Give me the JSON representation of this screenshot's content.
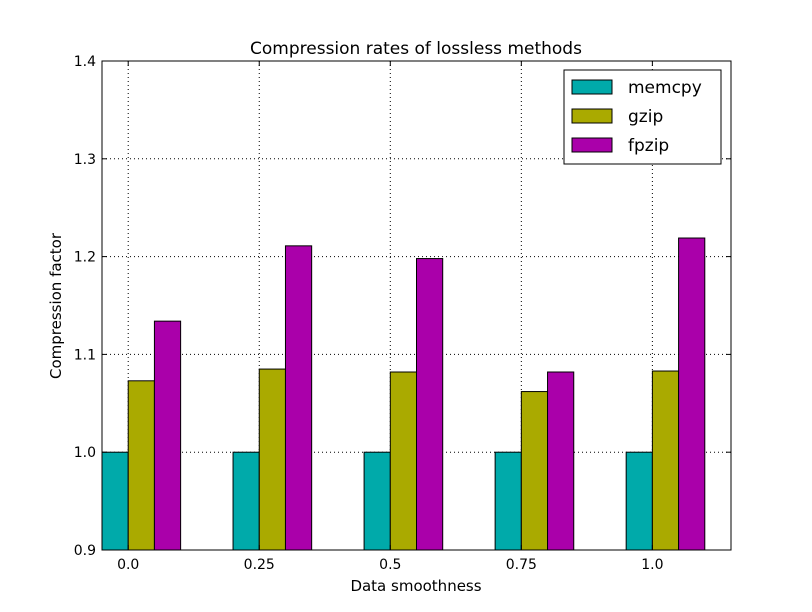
{
  "chart_data": {
    "type": "bar",
    "title": "Compression rates of lossless methods",
    "xlabel": "Data smoothness",
    "ylabel": "Compression factor",
    "categories": [
      "0.0",
      "0.25",
      "0.5",
      "0.75",
      "1.0"
    ],
    "ylim": [
      0.9,
      1.4
    ],
    "yticks": [
      "0.9",
      "1.0",
      "1.1",
      "1.2",
      "1.3",
      "1.4"
    ],
    "grid": true,
    "legend_position": "top-right",
    "series": [
      {
        "name": "memcpy",
        "color": "#00aaaa",
        "values": [
          1.0,
          1.0,
          1.0,
          1.0,
          1.0
        ]
      },
      {
        "name": "gzip",
        "color": "#aaaa00",
        "values": [
          1.073,
          1.085,
          1.082,
          1.062,
          1.083
        ]
      },
      {
        "name": "fpzip",
        "color": "#aa00aa",
        "values": [
          1.134,
          1.211,
          1.198,
          1.082,
          1.219
        ]
      }
    ]
  }
}
